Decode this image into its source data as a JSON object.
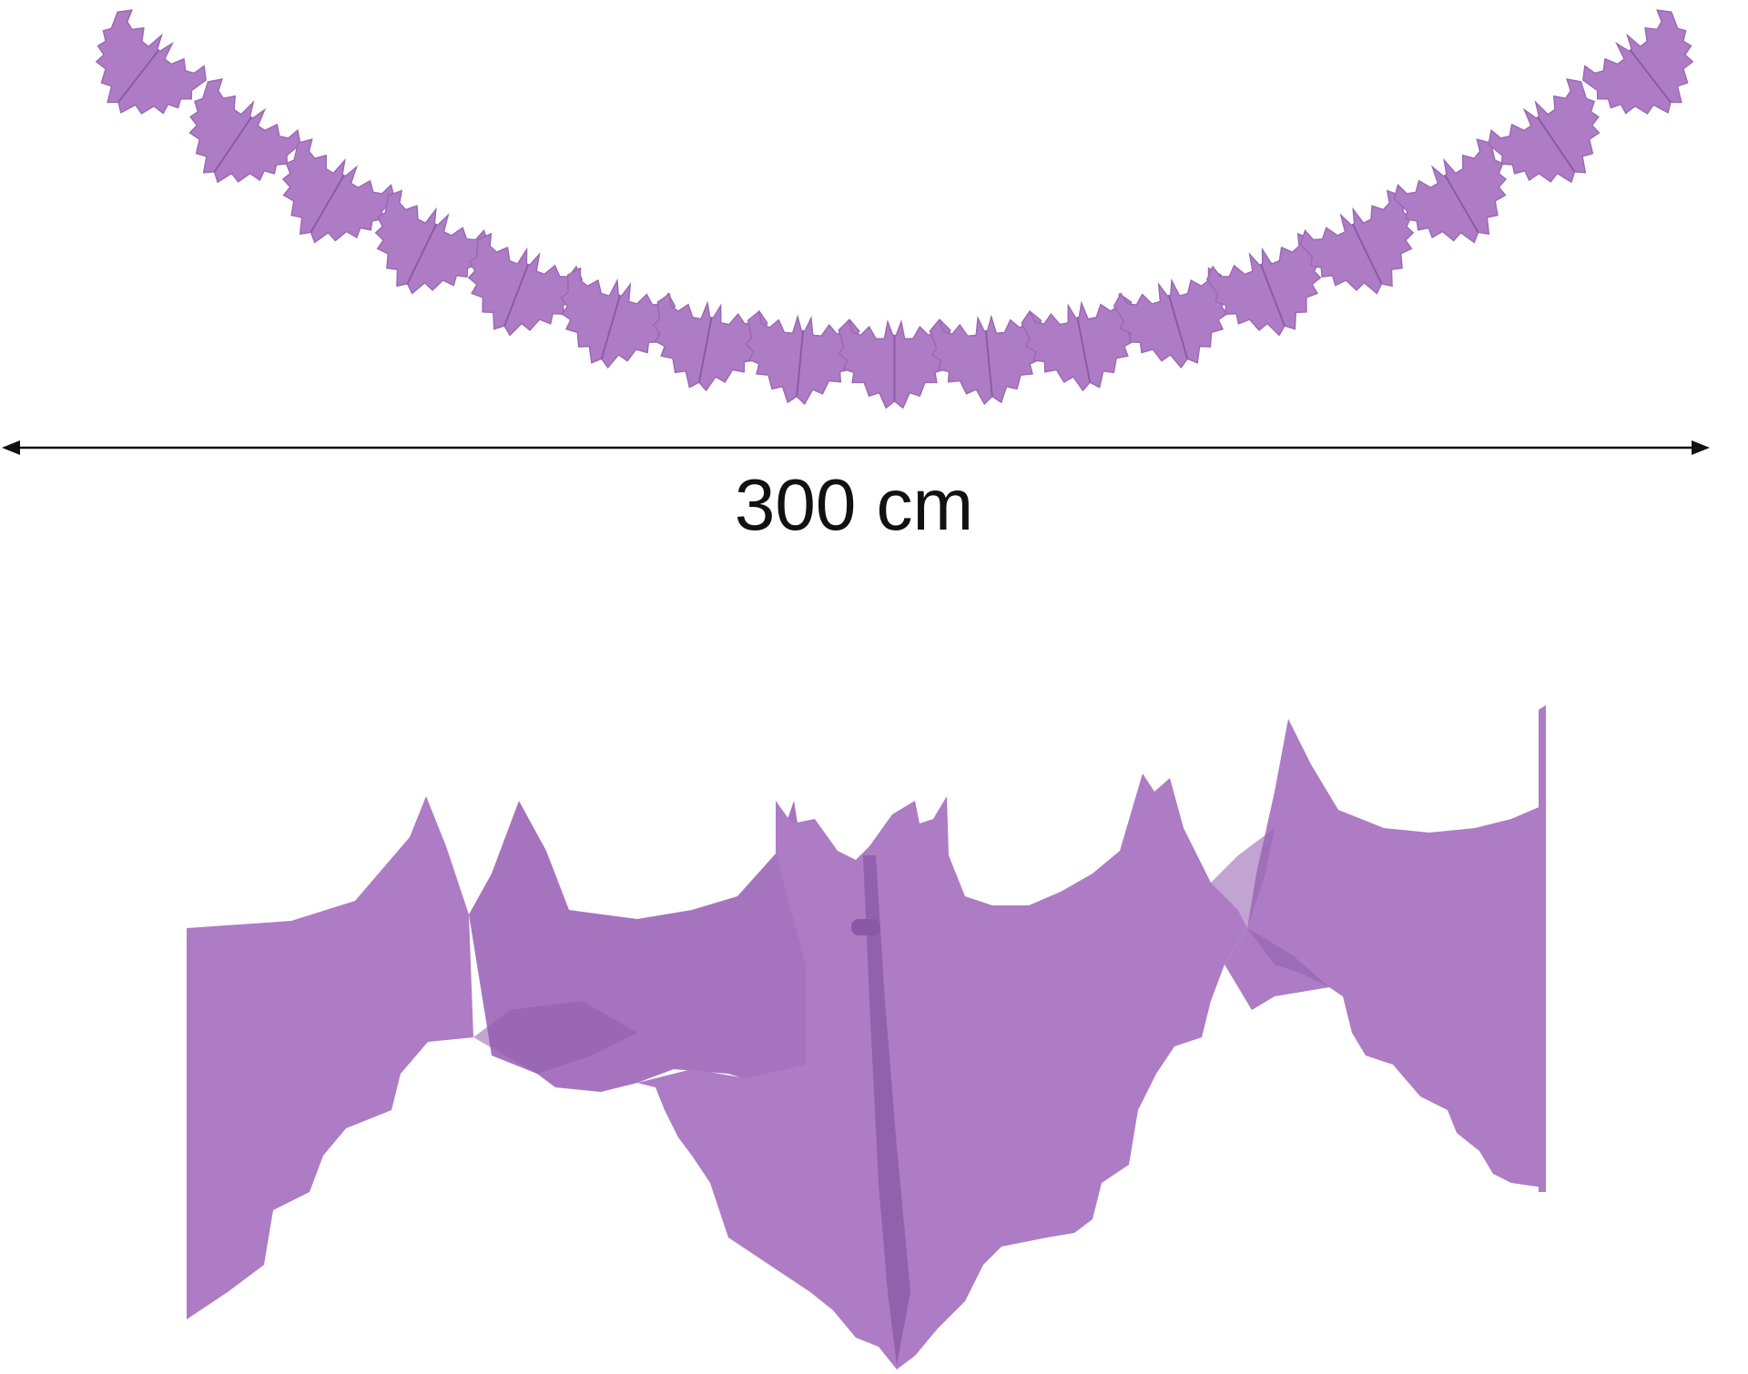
{
  "dimension": {
    "label": "300 cm"
  },
  "colors": {
    "background": "#ffffff",
    "bat_purple": "#ad7cc4",
    "bat_fold_shadow": "#9a68b4",
    "bat_dark_edge": "#8a58a6",
    "arrow_line": "#111111"
  },
  "garland": {
    "bat_count": 17,
    "orientation": "hanging-curve"
  },
  "icons": {
    "arrow_left": "arrowhead-left-icon",
    "arrow_right": "arrowhead-right-icon"
  }
}
